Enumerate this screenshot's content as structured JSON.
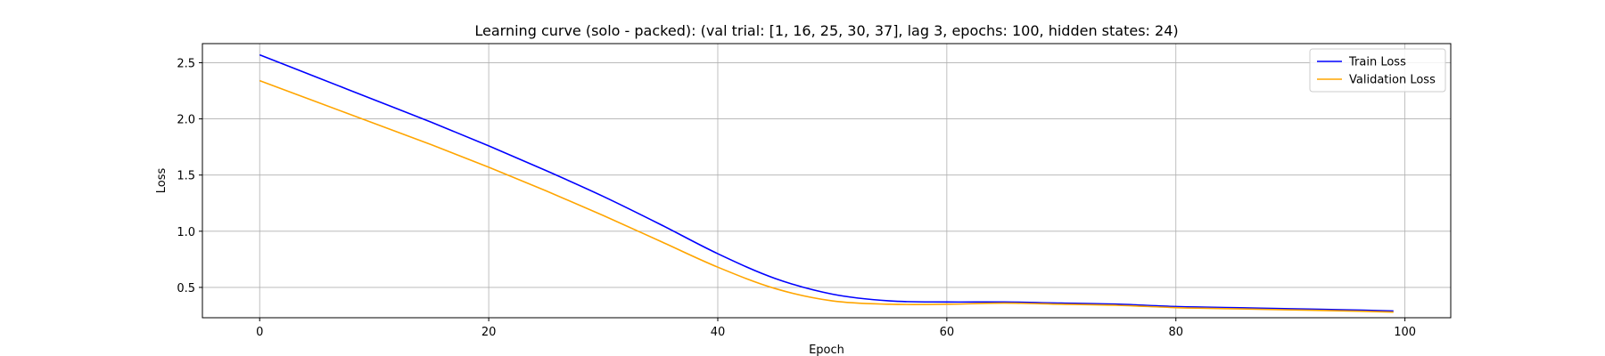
{
  "chart_data": {
    "type": "line",
    "title": "Learning curve (solo - packed): (val trial: [1, 16, 25, 30, 37], lag 3, epochs: 100, hidden states: 24)",
    "xlabel": "Epoch",
    "ylabel": "Loss",
    "xlim": [
      -5,
      104
    ],
    "ylim": [
      0.23,
      2.67
    ],
    "xticks": [
      0,
      20,
      40,
      60,
      80,
      100
    ],
    "yticks": [
      0.5,
      1.0,
      1.5,
      2.0,
      2.5
    ],
    "xtick_labels": [
      "0",
      "20",
      "40",
      "60",
      "80",
      "100"
    ],
    "ytick_labels": [
      "0.5",
      "1.0",
      "1.5",
      "2.0",
      "2.5"
    ],
    "grid": true,
    "legend_position": "top-right",
    "x": [
      0,
      5,
      10,
      15,
      20,
      25,
      30,
      35,
      40,
      45,
      50,
      55,
      60,
      65,
      70,
      75,
      80,
      85,
      90,
      95,
      99
    ],
    "series": [
      {
        "name": "Train Loss",
        "color": "#0000ff",
        "values": [
          2.57,
          2.37,
          2.17,
          1.97,
          1.76,
          1.54,
          1.31,
          1.06,
          0.8,
          0.58,
          0.44,
          0.38,
          0.37,
          0.37,
          0.36,
          0.35,
          0.33,
          0.32,
          0.31,
          0.3,
          0.29
        ]
      },
      {
        "name": "Validation Loss",
        "color": "#ffa500",
        "values": [
          2.34,
          2.15,
          1.96,
          1.77,
          1.57,
          1.36,
          1.14,
          0.91,
          0.68,
          0.49,
          0.38,
          0.35,
          0.35,
          0.36,
          0.35,
          0.34,
          0.32,
          0.31,
          0.3,
          0.29,
          0.28
        ]
      }
    ]
  }
}
